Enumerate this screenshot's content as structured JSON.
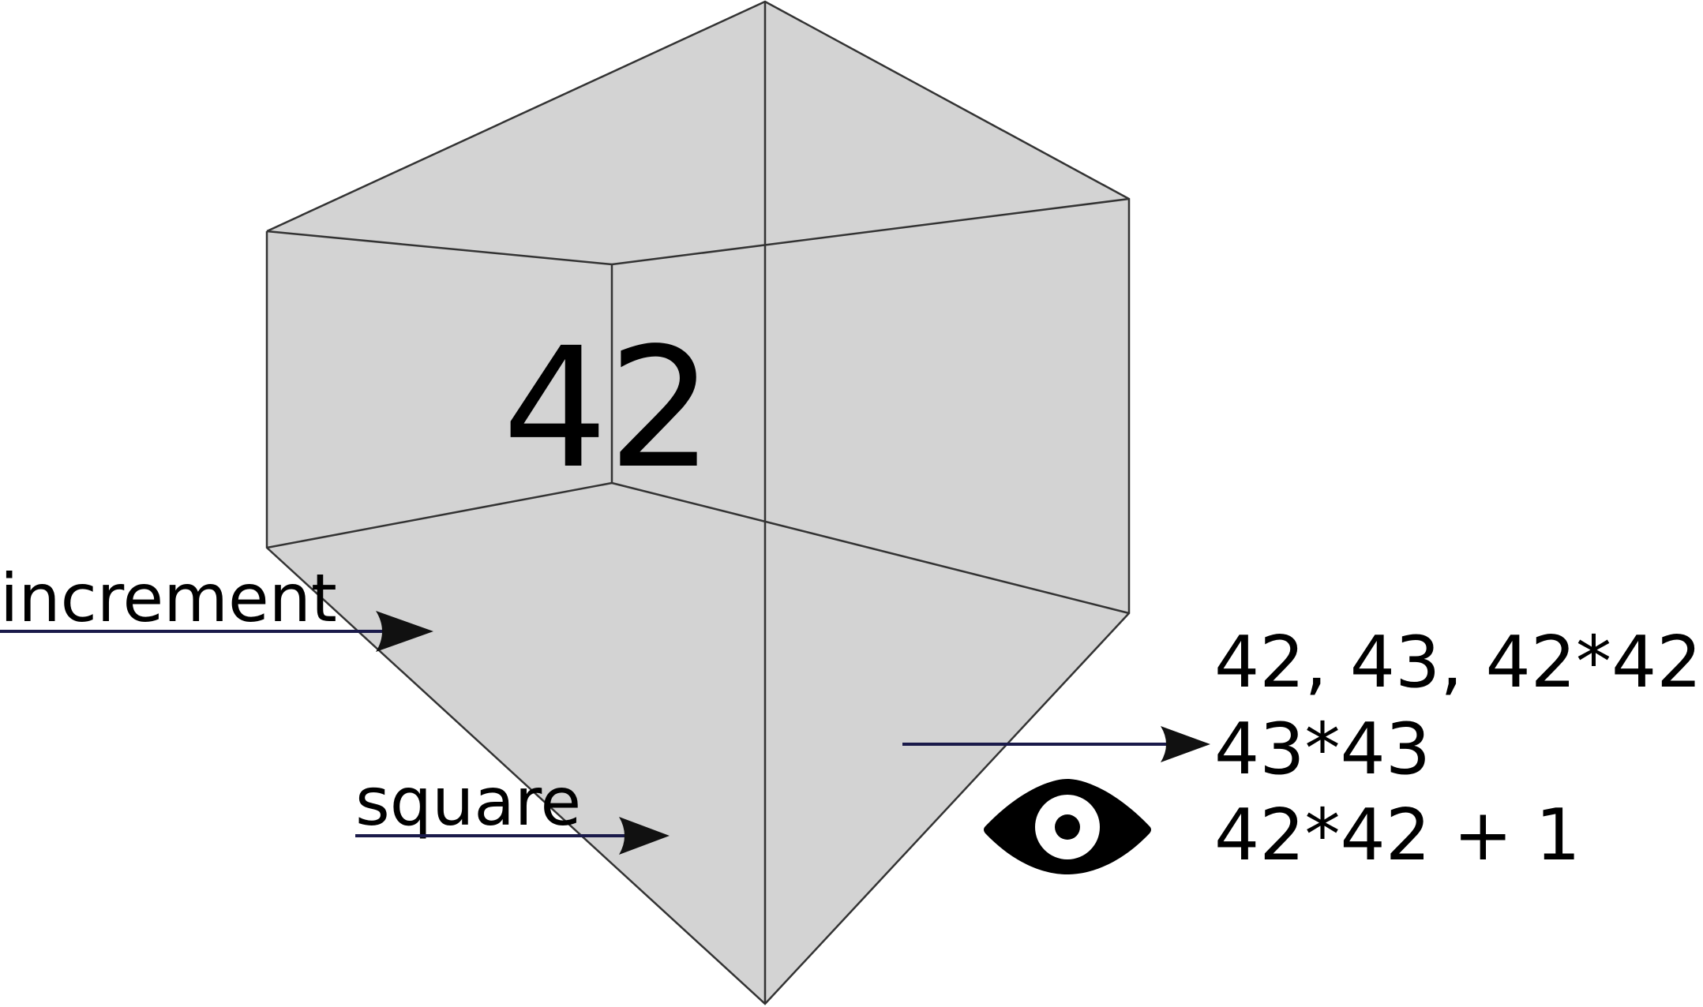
{
  "box": {
    "value": "42",
    "fill_color": "#d3d3d3",
    "edge_color": "#333333"
  },
  "inputs": [
    {
      "label": "increment",
      "arrow_color": "#1a1a4a"
    },
    {
      "label": "square",
      "arrow_color": "#1a1a4a"
    }
  ],
  "output": {
    "lines": [
      "42, 43, 42*42",
      "43*43",
      "42*42 + 1"
    ],
    "arrow_color": "#1a1a4a",
    "icon": "eye-icon"
  }
}
